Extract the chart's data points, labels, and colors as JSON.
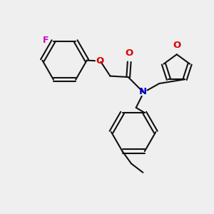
{
  "bg_color": "#efefef",
  "bond_color": "#111111",
  "N_color": "#0000cc",
  "O_color": "#dd0000",
  "F_color": "#cc00cc",
  "line_width": 1.5,
  "figsize": [
    3.0,
    3.0
  ],
  "dpi": 100,
  "xlim": [
    0,
    10
  ],
  "ylim": [
    0,
    10
  ]
}
